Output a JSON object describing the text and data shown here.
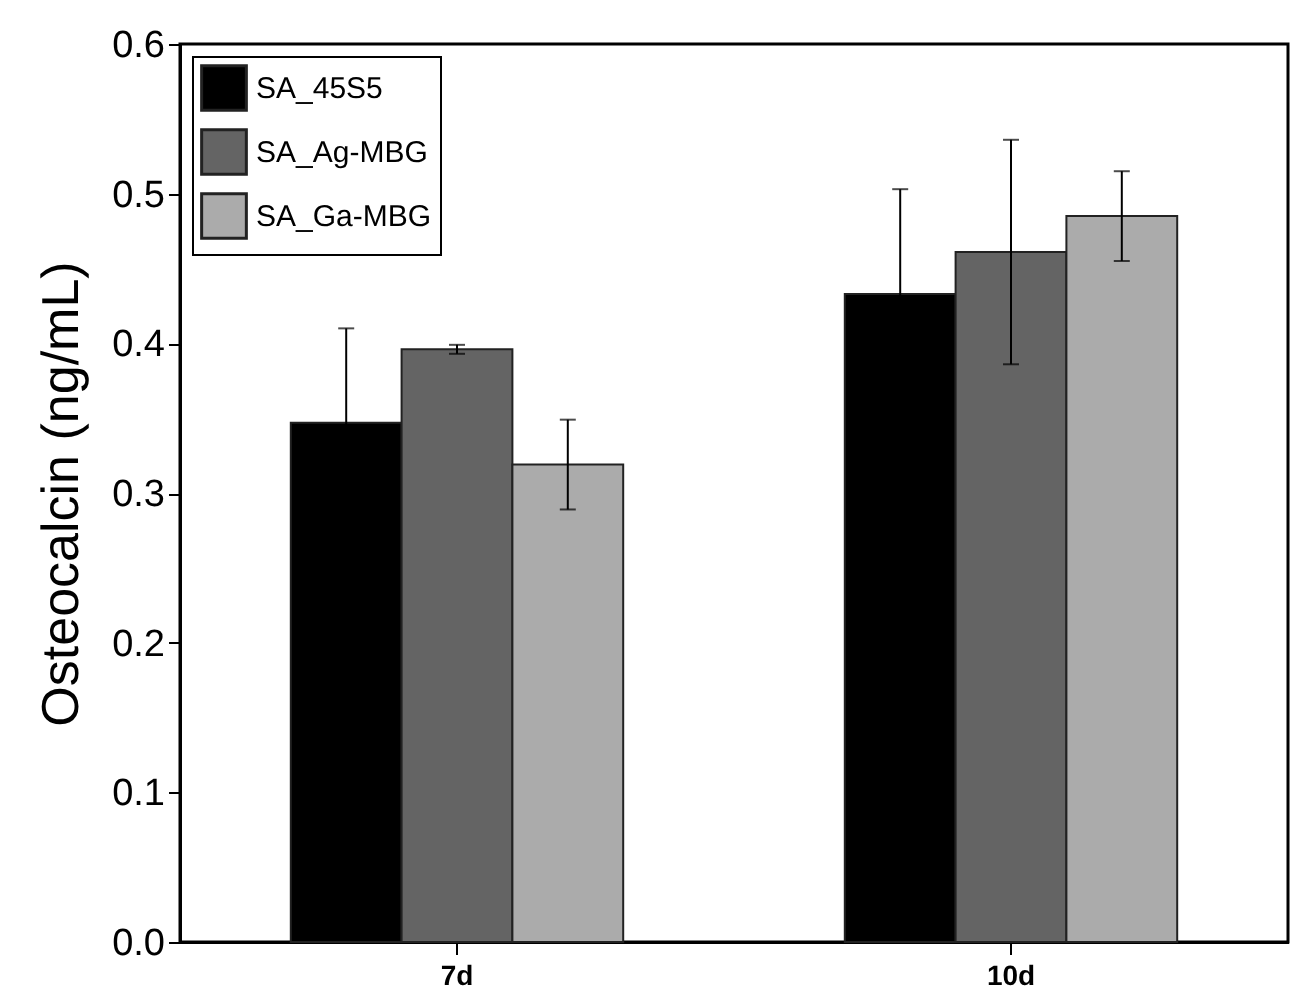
{
  "chart_data": {
    "type": "bar",
    "ylabel": "Osteocalcin (ng/mL)",
    "categories": [
      "7d",
      "10d"
    ],
    "series": [
      {
        "name": "SA_45S5",
        "color": "#000000",
        "values": [
          0.347,
          0.433
        ],
        "errors": [
          0.063,
          0.07
        ]
      },
      {
        "name": "SA_Ag-MBG",
        "color": "#646464",
        "values": [
          0.396,
          0.461
        ],
        "errors": [
          0.003,
          0.075
        ]
      },
      {
        "name": "SA_Ga-MBG",
        "color": "#ababab",
        "values": [
          0.319,
          0.485
        ],
        "errors": [
          0.03,
          0.03
        ]
      }
    ],
    "ylim": [
      0,
      0.6
    ],
    "yticks": [
      {
        "value": 0,
        "label": "0.0"
      },
      0.1,
      0.2,
      0.3,
      0.4,
      0.5,
      0.6
    ],
    "grid": false,
    "legend": "top left"
  }
}
